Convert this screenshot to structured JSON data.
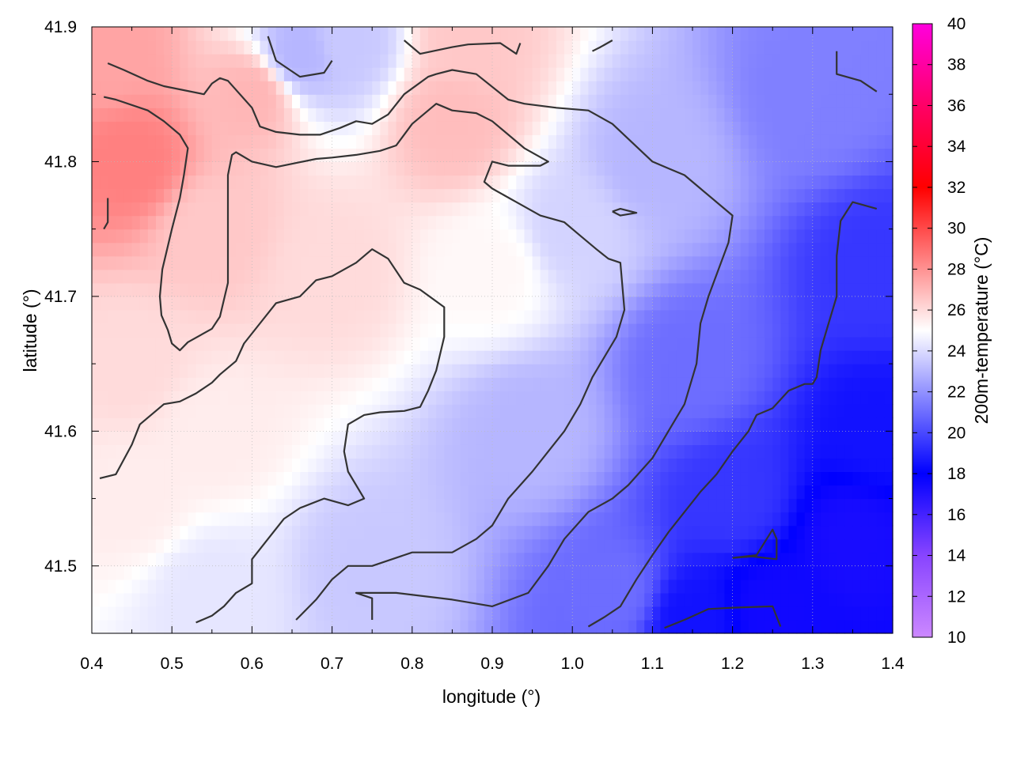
{
  "chart_data": {
    "type": "heatmap",
    "title": "",
    "xlabel": "longitude (°)",
    "ylabel": "latitude (°)",
    "colorbar_label": "200m-temperature (°C)",
    "xlim": [
      0.4,
      1.4
    ],
    "ylim": [
      41.45,
      41.9
    ],
    "x_ticks": [
      "0.4",
      "0.5",
      "0.6",
      "0.7",
      "0.8",
      "0.9",
      "1.0",
      "1.1",
      "1.2",
      "1.3",
      "1.4"
    ],
    "y_ticks": [
      "41.5",
      "41.6",
      "41.7",
      "41.8",
      "41.9"
    ],
    "colorbar_ticks": [
      "10",
      "12",
      "14",
      "16",
      "18",
      "20",
      "22",
      "24",
      "26",
      "28",
      "30",
      "32",
      "34",
      "36",
      "38",
      "40"
    ],
    "colorbar_range": [
      10,
      40
    ],
    "grid": true,
    "palette": [
      {
        "value": 10,
        "color": "#cc88ff"
      },
      {
        "value": 14,
        "color": "#8844ff"
      },
      {
        "value": 18,
        "color": "#0000ff"
      },
      {
        "value": 25,
        "color": "#ffffff"
      },
      {
        "value": 32,
        "color": "#ff0000"
      },
      {
        "value": 36,
        "color": "#ff0066"
      },
      {
        "value": 40,
        "color": "#ff00dd"
      }
    ],
    "temperature_field": {
      "description_points": [
        {
          "lon": 0.45,
          "lat": 41.8,
          "value": 28.5
        },
        {
          "lon": 0.42,
          "lat": 41.88,
          "value": 27.5
        },
        {
          "lon": 0.6,
          "lat": 41.85,
          "value": 27.0
        },
        {
          "lon": 0.55,
          "lat": 41.75,
          "value": 26.5
        },
        {
          "lon": 0.85,
          "lat": 41.83,
          "value": 26.8
        },
        {
          "lon": 0.87,
          "lat": 41.89,
          "value": 26.5
        },
        {
          "lon": 0.7,
          "lat": 41.72,
          "value": 26.0
        },
        {
          "lon": 0.45,
          "lat": 41.65,
          "value": 26.0
        },
        {
          "lon": 0.45,
          "lat": 41.55,
          "value": 25.5
        },
        {
          "lon": 0.55,
          "lat": 41.6,
          "value": 25.5
        },
        {
          "lon": 0.9,
          "lat": 41.72,
          "value": 25.2
        },
        {
          "lon": 0.72,
          "lat": 41.89,
          "value": 23.5
        },
        {
          "lon": 0.66,
          "lat": 41.88,
          "value": 23.0
        },
        {
          "lon": 0.55,
          "lat": 41.48,
          "value": 24.3
        },
        {
          "lon": 0.75,
          "lat": 41.5,
          "value": 23.5
        },
        {
          "lon": 0.95,
          "lat": 41.6,
          "value": 23.0
        },
        {
          "lon": 1.0,
          "lat": 41.75,
          "value": 23.8
        },
        {
          "lon": 1.1,
          "lat": 41.8,
          "value": 23.0
        },
        {
          "lon": 1.05,
          "lat": 41.48,
          "value": 21.0
        },
        {
          "lon": 1.15,
          "lat": 41.65,
          "value": 21.0
        },
        {
          "lon": 1.3,
          "lat": 41.85,
          "value": 21.5
        },
        {
          "lon": 1.38,
          "lat": 41.72,
          "value": 19.5
        },
        {
          "lon": 1.2,
          "lat": 41.55,
          "value": 19.5
        },
        {
          "lon": 1.25,
          "lat": 41.47,
          "value": 17.5
        },
        {
          "lon": 1.35,
          "lat": 41.52,
          "value": 17.3
        },
        {
          "lon": 1.38,
          "lat": 41.6,
          "value": 18.5
        },
        {
          "lon": 1.15,
          "lat": 41.46,
          "value": 18.5
        }
      ]
    },
    "contours": [
      {
        "name": "contour-line",
        "points": [
          [
            0.42,
            41.873
          ],
          [
            0.44,
            41.868
          ],
          [
            0.47,
            41.86
          ],
          [
            0.49,
            41.856
          ],
          [
            0.54,
            41.85
          ],
          [
            0.55,
            41.858
          ],
          [
            0.56,
            41.862
          ],
          [
            0.57,
            41.86
          ],
          [
            0.6,
            41.84
          ],
          [
            0.61,
            41.826
          ],
          [
            0.63,
            41.822
          ],
          [
            0.66,
            41.82
          ],
          [
            0.685,
            41.82
          ],
          [
            0.71,
            41.825
          ],
          [
            0.73,
            41.83
          ],
          [
            0.75,
            41.828
          ],
          [
            0.77,
            41.835
          ],
          [
            0.79,
            41.85
          ],
          [
            0.82,
            41.863
          ],
          [
            0.83,
            41.865
          ],
          [
            0.85,
            41.868
          ],
          [
            0.88,
            41.865
          ],
          [
            0.92,
            41.846
          ],
          [
            0.94,
            41.843
          ],
          [
            0.98,
            41.84
          ],
          [
            1.02,
            41.838
          ],
          [
            1.05,
            41.828
          ],
          [
            1.1,
            41.8
          ],
          [
            1.12,
            41.795
          ],
          [
            1.14,
            41.79
          ],
          [
            1.16,
            41.78
          ],
          [
            1.18,
            41.77
          ],
          [
            1.2,
            41.76
          ],
          [
            1.195,
            41.74
          ],
          [
            1.17,
            41.7
          ],
          [
            1.16,
            41.68
          ],
          [
            1.155,
            41.65
          ],
          [
            1.14,
            41.62
          ],
          [
            1.12,
            41.6
          ],
          [
            1.1,
            41.58
          ],
          [
            1.07,
            41.56
          ],
          [
            1.05,
            41.55
          ],
          [
            1.02,
            41.54
          ],
          [
            0.99,
            41.52
          ],
          [
            0.97,
            41.5
          ],
          [
            0.945,
            41.48
          ],
          [
            0.9,
            41.47
          ],
          [
            0.85,
            41.475
          ],
          [
            0.78,
            41.48
          ],
          [
            0.73,
            41.48
          ],
          [
            0.75,
            41.476
          ],
          [
            0.75,
            41.46
          ]
        ]
      },
      {
        "name": "contour-line",
        "points": [
          [
            0.415,
            41.848
          ],
          [
            0.43,
            41.846
          ],
          [
            0.47,
            41.838
          ],
          [
            0.49,
            41.83
          ],
          [
            0.51,
            41.82
          ],
          [
            0.52,
            41.81
          ],
          [
            0.515,
            41.79
          ],
          [
            0.51,
            41.773
          ],
          [
            0.5,
            41.75
          ],
          [
            0.488,
            41.72
          ],
          [
            0.485,
            41.7
          ],
          [
            0.487,
            41.686
          ],
          [
            0.495,
            41.675
          ],
          [
            0.5,
            41.665
          ],
          [
            0.51,
            41.66
          ],
          [
            0.52,
            41.666
          ],
          [
            0.55,
            41.676
          ],
          [
            0.56,
            41.685
          ],
          [
            0.57,
            41.71
          ],
          [
            0.57,
            41.74
          ],
          [
            0.57,
            41.79
          ],
          [
            0.575,
            41.805
          ],
          [
            0.58,
            41.807
          ],
          [
            0.6,
            41.8
          ],
          [
            0.63,
            41.796
          ],
          [
            0.68,
            41.802
          ],
          [
            0.7,
            41.803
          ],
          [
            0.73,
            41.805
          ],
          [
            0.76,
            41.808
          ],
          [
            0.78,
            41.812
          ],
          [
            0.8,
            41.828
          ],
          [
            0.83,
            41.843
          ],
          [
            0.85,
            41.838
          ],
          [
            0.88,
            41.836
          ],
          [
            0.9,
            41.83
          ],
          [
            0.93,
            41.815
          ],
          [
            0.94,
            41.81
          ],
          [
            0.97,
            41.8
          ],
          [
            0.96,
            41.797
          ],
          [
            0.92,
            41.797
          ],
          [
            0.9,
            41.8
          ],
          [
            0.89,
            41.785
          ],
          [
            0.9,
            41.78
          ],
          [
            0.93,
            41.77
          ],
          [
            0.96,
            41.76
          ],
          [
            0.99,
            41.755
          ],
          [
            1.01,
            41.745
          ],
          [
            1.03,
            41.735
          ],
          [
            1.045,
            41.728
          ],
          [
            1.06,
            41.725
          ],
          [
            1.065,
            41.69
          ],
          [
            1.055,
            41.67
          ],
          [
            1.04,
            41.655
          ],
          [
            1.025,
            41.64
          ],
          [
            1.01,
            41.62
          ],
          [
            0.99,
            41.6
          ],
          [
            0.97,
            41.585
          ],
          [
            0.95,
            41.57
          ],
          [
            0.92,
            41.55
          ],
          [
            0.9,
            41.53
          ],
          [
            0.88,
            41.52
          ],
          [
            0.85,
            41.51
          ],
          [
            0.8,
            41.51
          ],
          [
            0.75,
            41.5
          ],
          [
            0.72,
            41.5
          ],
          [
            0.7,
            41.49
          ],
          [
            0.68,
            41.475
          ],
          [
            0.655,
            41.46
          ]
        ]
      },
      {
        "name": "contour-line",
        "points": [
          [
            0.41,
            41.565
          ],
          [
            0.43,
            41.568
          ],
          [
            0.45,
            41.59
          ],
          [
            0.46,
            41.605
          ],
          [
            0.49,
            41.62
          ],
          [
            0.51,
            41.622
          ],
          [
            0.53,
            41.628
          ],
          [
            0.55,
            41.636
          ],
          [
            0.56,
            41.642
          ],
          [
            0.58,
            41.652
          ],
          [
            0.59,
            41.665
          ],
          [
            0.61,
            41.68
          ],
          [
            0.63,
            41.695
          ],
          [
            0.66,
            41.7
          ],
          [
            0.68,
            41.712
          ],
          [
            0.7,
            41.715
          ],
          [
            0.73,
            41.725
          ],
          [
            0.75,
            41.735
          ],
          [
            0.77,
            41.728
          ],
          [
            0.79,
            41.71
          ],
          [
            0.81,
            41.705
          ],
          [
            0.84,
            41.692
          ],
          [
            0.84,
            41.67
          ],
          [
            0.83,
            41.645
          ],
          [
            0.82,
            41.63
          ],
          [
            0.81,
            41.618
          ],
          [
            0.79,
            41.615
          ],
          [
            0.76,
            41.614
          ],
          [
            0.74,
            41.612
          ],
          [
            0.72,
            41.605
          ],
          [
            0.715,
            41.585
          ],
          [
            0.72,
            41.57
          ],
          [
            0.74,
            41.55
          ],
          [
            0.72,
            41.545
          ],
          [
            0.69,
            41.55
          ],
          [
            0.66,
            41.543
          ],
          [
            0.64,
            41.535
          ],
          [
            0.62,
            41.52
          ],
          [
            0.6,
            41.505
          ],
          [
            0.6,
            41.487
          ],
          [
            0.58,
            41.48
          ],
          [
            0.565,
            41.47
          ],
          [
            0.55,
            41.463
          ],
          [
            0.53,
            41.458
          ]
        ]
      },
      {
        "name": "contour-line",
        "points": [
          [
            0.62,
            41.893
          ],
          [
            0.63,
            41.875
          ],
          [
            0.66,
            41.863
          ],
          [
            0.69,
            41.866
          ],
          [
            0.7,
            41.875
          ]
        ]
      },
      {
        "name": "contour-line",
        "points": [
          [
            0.79,
            41.89
          ],
          [
            0.81,
            41.88
          ],
          [
            0.85,
            41.885
          ],
          [
            0.87,
            41.887
          ],
          [
            0.91,
            41.888
          ],
          [
            0.93,
            41.88
          ],
          [
            0.935,
            41.888
          ]
        ]
      },
      {
        "name": "contour-line",
        "points": [
          [
            1.025,
            41.882
          ],
          [
            1.035,
            41.885
          ],
          [
            1.05,
            41.89
          ]
        ]
      },
      {
        "name": "contour-line",
        "points": [
          [
            1.33,
            41.882
          ],
          [
            1.33,
            41.865
          ],
          [
            1.36,
            41.86
          ],
          [
            1.38,
            41.852
          ]
        ]
      },
      {
        "name": "contour-line",
        "points": [
          [
            0.42,
            41.773
          ],
          [
            0.42,
            41.755
          ],
          [
            0.415,
            41.75
          ]
        ]
      },
      {
        "name": "contour-line",
        "points": [
          [
            1.05,
            41.763
          ],
          [
            1.06,
            41.765
          ],
          [
            1.08,
            41.762
          ],
          [
            1.06,
            41.76
          ],
          [
            1.05,
            41.763
          ]
        ]
      },
      {
        "name": "contour-line",
        "points": [
          [
            1.38,
            41.765
          ],
          [
            1.35,
            41.77
          ],
          [
            1.335,
            41.756
          ],
          [
            1.33,
            41.73
          ],
          [
            1.33,
            41.7
          ],
          [
            1.32,
            41.68
          ],
          [
            1.31,
            41.66
          ],
          [
            1.305,
            41.64
          ],
          [
            1.3,
            41.635
          ],
          [
            1.29,
            41.635
          ],
          [
            1.27,
            41.63
          ],
          [
            1.25,
            41.617
          ],
          [
            1.23,
            41.612
          ],
          [
            1.22,
            41.6
          ],
          [
            1.2,
            41.585
          ],
          [
            1.18,
            41.568
          ],
          [
            1.16,
            41.555
          ],
          [
            1.14,
            41.54
          ],
          [
            1.12,
            41.525
          ],
          [
            1.1,
            41.508
          ],
          [
            1.08,
            41.49
          ],
          [
            1.06,
            41.47
          ],
          [
            1.04,
            41.462
          ],
          [
            1.02,
            41.455
          ]
        ]
      },
      {
        "name": "contour-line",
        "points": [
          [
            1.2,
            41.506
          ],
          [
            1.23,
            41.508
          ],
          [
            1.25,
            41.527
          ],
          [
            1.255,
            41.52
          ],
          [
            1.255,
            41.505
          ],
          [
            1.225,
            41.507
          ],
          [
            1.2,
            41.506
          ]
        ]
      },
      {
        "name": "contour-line",
        "points": [
          [
            1.115,
            41.454
          ],
          [
            1.14,
            41.46
          ],
          [
            1.17,
            41.468
          ],
          [
            1.2,
            41.469
          ],
          [
            1.25,
            41.47
          ],
          [
            1.26,
            41.455
          ]
        ]
      }
    ]
  }
}
